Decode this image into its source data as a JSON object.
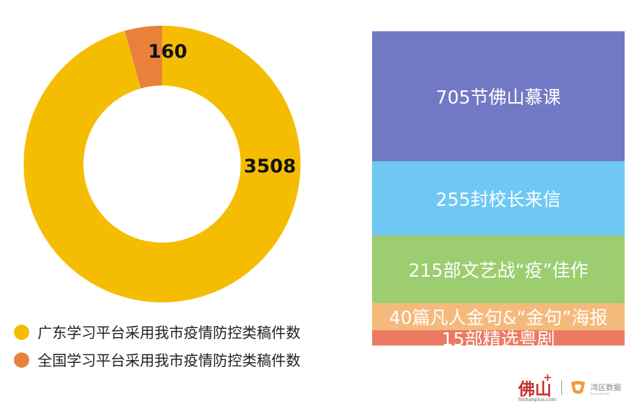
{
  "chart_data": [
    {
      "type": "pie",
      "donut": true,
      "slices": [
        {
          "name": "广东学习平台采用我市疫情防控类稿件数",
          "value": 3508,
          "label": "3508",
          "color": "#f5bd02"
        },
        {
          "name": "全国学习平台采用我市疫情防控类稿件数",
          "value": 160,
          "label": "160",
          "color": "#e9813a"
        }
      ],
      "legend_position": "bottom-left"
    },
    {
      "type": "bar",
      "stacked": true,
      "orientation": "vertical",
      "segments": [
        {
          "value": 705,
          "label": "705节佛山慕课",
          "color": "#7279c4"
        },
        {
          "value": 255,
          "label": "255封校长来信",
          "color": "#6fc8f3"
        },
        {
          "value": 215,
          "label": "215部文艺战“疫”佳作",
          "color": "#9ccd70"
        },
        {
          "value": 40,
          "label": "40篇凡人金句&“金句”海报",
          "color": "#f4ba7c"
        },
        {
          "value": 15,
          "label": "15部精选粤剧",
          "color": "#ec7a63"
        }
      ]
    }
  ],
  "logos": {
    "foshan": {
      "name": "佛山",
      "plus": "+",
      "site": "foshanplus.com"
    },
    "bay": {
      "name": "湾区数据",
      "sub": "bayarea"
    }
  }
}
